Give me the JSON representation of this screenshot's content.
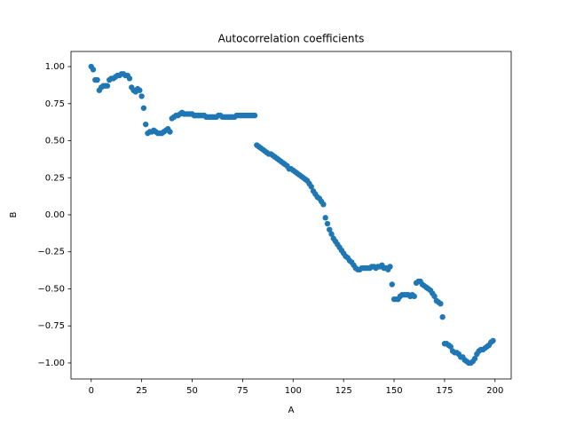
{
  "chart_data": {
    "type": "scatter",
    "title": "Autocorrelation coefficients",
    "x_label": "A",
    "y_label": "B",
    "color": "#1f77b4",
    "grid": false,
    "xlim": [
      -10,
      208
    ],
    "ylim": [
      -1.108,
      1.102
    ],
    "xticks": [
      0,
      25,
      50,
      75,
      100,
      125,
      150,
      175,
      200
    ],
    "yticks": [
      {
        "value": 1.0,
        "label": "1.00"
      },
      {
        "value": 0.75,
        "label": "0.75"
      },
      {
        "value": 0.5,
        "label": "0.50"
      },
      {
        "value": 0.25,
        "label": "0.25"
      },
      {
        "value": 0.0,
        "label": "0.00"
      },
      {
        "value": -0.25,
        "label": "−0.25"
      },
      {
        "value": -0.5,
        "label": "−0.50"
      },
      {
        "value": -0.75,
        "label": "−0.75"
      },
      {
        "value": -1.0,
        "label": "−1.00"
      }
    ],
    "x": [
      0,
      1,
      2,
      3,
      4,
      5,
      6,
      7,
      8,
      9,
      10,
      11,
      12,
      13,
      14,
      15,
      16,
      17,
      18,
      19,
      20,
      21,
      22,
      23,
      24,
      25,
      26,
      27,
      28,
      29,
      30,
      31,
      32,
      33,
      34,
      35,
      36,
      37,
      38,
      39,
      40,
      41,
      42,
      43,
      44,
      45,
      46,
      47,
      48,
      49,
      50,
      51,
      52,
      53,
      54,
      55,
      56,
      57,
      58,
      59,
      60,
      61,
      62,
      63,
      64,
      65,
      66,
      67,
      68,
      69,
      70,
      71,
      72,
      73,
      74,
      75,
      76,
      77,
      78,
      79,
      80,
      81,
      82,
      83,
      84,
      85,
      86,
      87,
      88,
      89,
      90,
      91,
      92,
      93,
      94,
      95,
      96,
      97,
      98,
      99,
      100,
      101,
      102,
      103,
      104,
      105,
      106,
      107,
      108,
      109,
      110,
      111,
      112,
      113,
      114,
      115,
      116,
      117,
      118,
      119,
      120,
      121,
      122,
      123,
      124,
      125,
      126,
      127,
      128,
      129,
      130,
      131,
      132,
      133,
      134,
      135,
      136,
      137,
      138,
      139,
      140,
      141,
      142,
      143,
      144,
      145,
      146,
      147,
      148,
      149,
      150,
      151,
      152,
      153,
      154,
      155,
      156,
      157,
      158,
      159,
      160,
      161,
      162,
      163,
      164,
      165,
      166,
      167,
      168,
      169,
      170,
      171,
      172,
      173,
      174,
      175,
      176,
      177,
      178,
      179,
      180,
      181,
      182,
      183,
      184,
      185,
      186,
      187,
      188,
      189,
      190,
      191,
      192,
      193,
      194,
      195,
      196,
      197,
      198,
      199
    ],
    "values": [
      1.0,
      0.98,
      0.91,
      0.91,
      0.84,
      0.86,
      0.87,
      0.87,
      0.87,
      0.91,
      0.92,
      0.92,
      0.93,
      0.94,
      0.94,
      0.95,
      0.95,
      0.94,
      0.94,
      0.92,
      0.86,
      0.84,
      0.83,
      0.85,
      0.84,
      0.8,
      0.72,
      0.61,
      0.55,
      0.56,
      0.56,
      0.57,
      0.56,
      0.55,
      0.55,
      0.55,
      0.56,
      0.57,
      0.58,
      0.56,
      0.65,
      0.66,
      0.67,
      0.67,
      0.68,
      0.69,
      0.68,
      0.68,
      0.68,
      0.68,
      0.68,
      0.67,
      0.67,
      0.67,
      0.67,
      0.67,
      0.67,
      0.66,
      0.66,
      0.66,
      0.66,
      0.66,
      0.66,
      0.67,
      0.67,
      0.66,
      0.66,
      0.66,
      0.66,
      0.66,
      0.66,
      0.66,
      0.67,
      0.67,
      0.67,
      0.67,
      0.67,
      0.67,
      0.67,
      0.67,
      0.67,
      0.67,
      0.47,
      0.46,
      0.45,
      0.44,
      0.43,
      0.42,
      0.41,
      0.41,
      0.4,
      0.39,
      0.38,
      0.37,
      0.36,
      0.35,
      0.34,
      0.33,
      0.31,
      0.31,
      0.3,
      0.29,
      0.28,
      0.27,
      0.26,
      0.25,
      0.24,
      0.23,
      0.21,
      0.19,
      0.16,
      0.14,
      0.12,
      0.11,
      0.09,
      0.07,
      -0.02,
      -0.06,
      -0.1,
      -0.13,
      -0.16,
      -0.18,
      -0.2,
      -0.22,
      -0.24,
      -0.26,
      -0.28,
      -0.29,
      -0.31,
      -0.32,
      -0.34,
      -0.36,
      -0.37,
      -0.37,
      -0.36,
      -0.36,
      -0.36,
      -0.36,
      -0.36,
      -0.35,
      -0.35,
      -0.36,
      -0.35,
      -0.35,
      -0.34,
      -0.36,
      -0.36,
      -0.37,
      -0.35,
      -0.47,
      -0.57,
      -0.57,
      -0.57,
      -0.55,
      -0.54,
      -0.54,
      -0.54,
      -0.54,
      -0.55,
      -0.54,
      -0.55,
      -0.46,
      -0.45,
      -0.45,
      -0.47,
      -0.48,
      -0.49,
      -0.5,
      -0.51,
      -0.53,
      -0.55,
      -0.58,
      -0.59,
      -0.6,
      -0.69,
      -0.87,
      -0.87,
      -0.88,
      -0.89,
      -0.92,
      -0.93,
      -0.93,
      -0.94,
      -0.96,
      -0.96,
      -0.98,
      -0.99,
      -1.0,
      -1.0,
      -0.99,
      -0.97,
      -0.94,
      -0.92,
      -0.91,
      -0.91,
      -0.9,
      -0.89,
      -0.88,
      -0.86,
      -0.85
    ]
  }
}
